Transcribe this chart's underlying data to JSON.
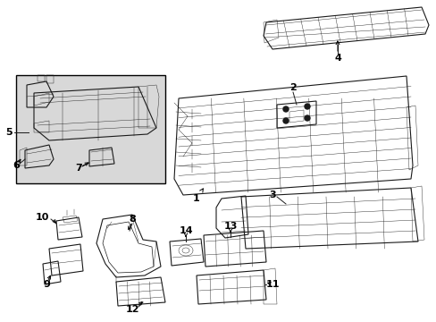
{
  "bg_color": "#ffffff",
  "line_color": "#1a1a1a",
  "box_bg": "#e0e0e0",
  "fig_w": 4.89,
  "fig_h": 3.6,
  "dpi": 100
}
